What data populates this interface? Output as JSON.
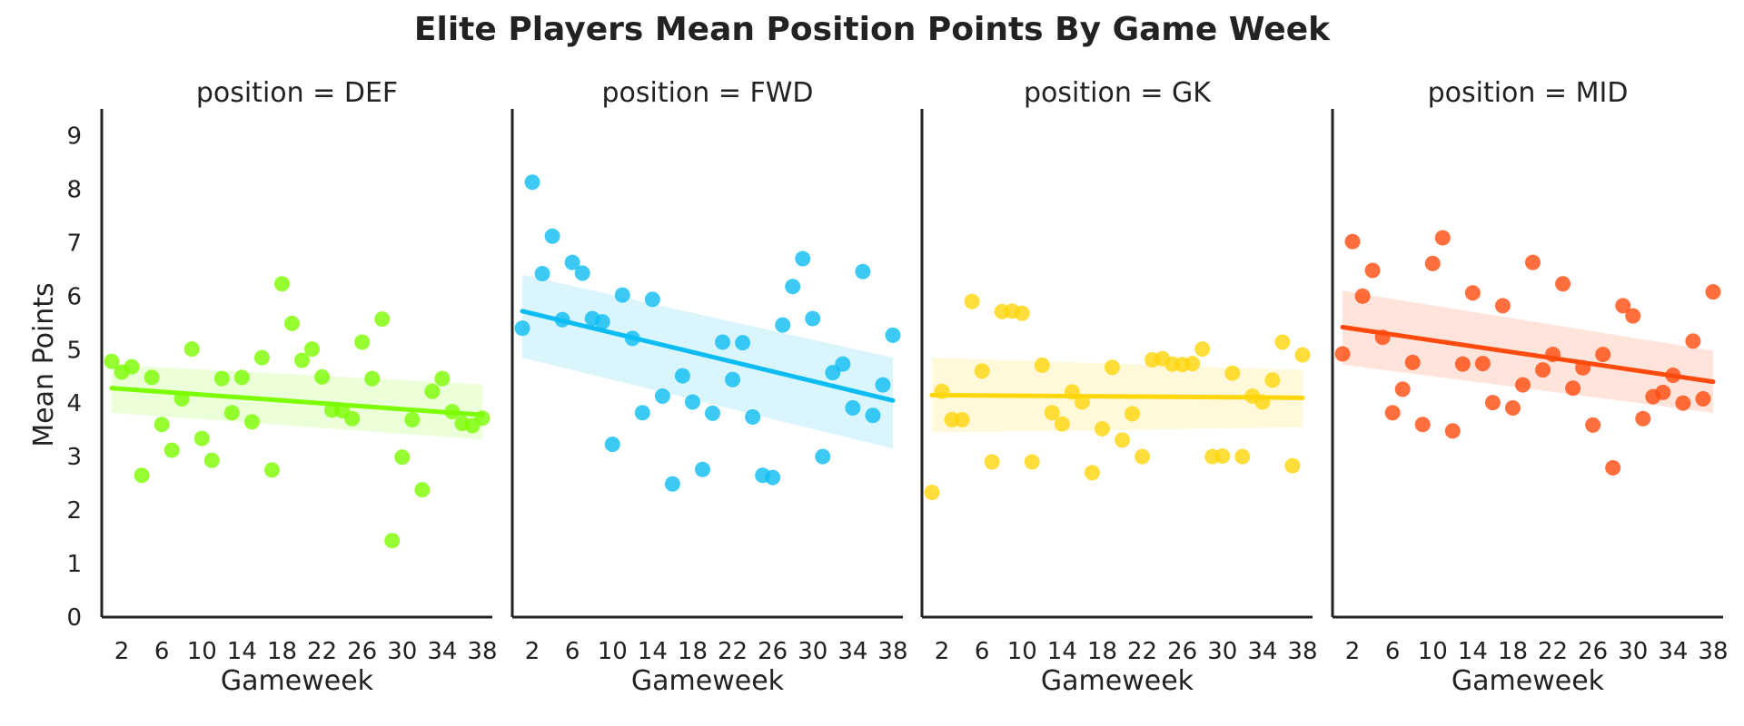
{
  "chart_data": {
    "type": "scatter",
    "title": "Elite Players Mean Position Points By Game Week",
    "xlabel": "Gameweek",
    "ylabel": "Mean Points",
    "ylim": [
      0,
      9.5
    ],
    "xlim": [
      0,
      39
    ],
    "x_ticks": [
      2,
      6,
      10,
      14,
      18,
      22,
      26,
      30,
      34,
      38
    ],
    "y_ticks": [
      0,
      1,
      2,
      3,
      4,
      5,
      6,
      7,
      8,
      9
    ],
    "grid": false,
    "facets": [
      {
        "title": "position = DEF",
        "color": "#7CFC00",
        "trend": {
          "start": [
            1,
            4.28
          ],
          "end": [
            38,
            3.78
          ]
        },
        "band": {
          "start": [
            3.82,
            4.72
          ],
          "end": [
            3.32,
            4.35
          ]
        },
        "x": [
          1,
          2,
          3,
          4,
          5,
          6,
          7,
          8,
          9,
          10,
          11,
          12,
          13,
          14,
          15,
          16,
          17,
          18,
          19,
          20,
          21,
          22,
          23,
          24,
          25,
          26,
          27,
          28,
          29,
          30,
          31,
          32,
          33,
          34,
          35,
          36,
          37,
          38
        ],
        "y": [
          4.78,
          4.58,
          4.68,
          2.65,
          4.48,
          3.6,
          3.12,
          4.08,
          5.01,
          3.34,
          2.93,
          4.46,
          3.82,
          4.48,
          3.65,
          4.85,
          2.75,
          6.23,
          5.49,
          4.8,
          5.01,
          4.49,
          3.87,
          3.86,
          3.71,
          5.14,
          4.46,
          5.57,
          1.43,
          2.99,
          3.69,
          2.38,
          4.22,
          4.46,
          3.84,
          3.62,
          3.58,
          3.72
        ]
      },
      {
        "title": "position = FWD",
        "color": "#0BBDF3",
        "trend": {
          "start": [
            1,
            5.72
          ],
          "end": [
            38,
            4.05
          ]
        },
        "band": {
          "start": [
            4.85,
            6.4
          ],
          "end": [
            3.15,
            4.85
          ]
        },
        "x": [
          1,
          2,
          3,
          4,
          5,
          6,
          7,
          8,
          9,
          10,
          11,
          12,
          13,
          14,
          15,
          16,
          17,
          18,
          19,
          20,
          21,
          22,
          23,
          24,
          25,
          26,
          27,
          28,
          29,
          30,
          31,
          32,
          33,
          34,
          35,
          36,
          37,
          38
        ],
        "y": [
          5.4,
          8.13,
          6.42,
          7.12,
          5.56,
          6.63,
          6.43,
          5.58,
          5.52,
          3.23,
          6.02,
          5.21,
          3.82,
          5.94,
          4.13,
          2.49,
          4.51,
          4.02,
          2.76,
          3.81,
          5.14,
          4.44,
          5.13,
          3.74,
          2.65,
          2.61,
          5.46,
          6.18,
          6.7,
          5.58,
          3.0,
          4.57,
          4.73,
          3.91,
          6.46,
          3.77,
          4.34,
          5.27
        ]
      },
      {
        "title": "position = GK",
        "color": "#FFD60A",
        "trend": {
          "start": [
            1,
            4.15
          ],
          "end": [
            38,
            4.1
          ]
        },
        "band": {
          "start": [
            3.45,
            4.85
          ],
          "end": [
            3.55,
            4.62
          ]
        },
        "x": [
          1,
          2,
          3,
          4,
          5,
          6,
          7,
          8,
          9,
          10,
          11,
          12,
          13,
          14,
          15,
          16,
          17,
          18,
          19,
          20,
          21,
          22,
          23,
          24,
          25,
          26,
          27,
          28,
          29,
          30,
          31,
          32,
          33,
          34,
          35,
          36,
          37,
          38
        ],
        "y": [
          2.33,
          4.22,
          3.69,
          3.69,
          5.9,
          4.6,
          2.9,
          5.71,
          5.72,
          5.68,
          2.9,
          4.71,
          3.82,
          3.61,
          4.21,
          4.02,
          2.7,
          3.52,
          4.67,
          3.31,
          3.8,
          3.0,
          4.81,
          4.83,
          4.73,
          4.72,
          4.74,
          5.01,
          3.0,
          3.01,
          4.56,
          3.0,
          4.13,
          4.02,
          4.43,
          5.14,
          2.83,
          4.9
        ]
      },
      {
        "title": "position = MID",
        "color": "#FF4A0D",
        "trend": {
          "start": [
            1,
            5.42
          ],
          "end": [
            38,
            4.4
          ]
        },
        "band": {
          "start": [
            4.72,
            6.1
          ],
          "end": [
            3.82,
            4.98
          ]
        },
        "x": [
          1,
          2,
          3,
          4,
          5,
          6,
          7,
          8,
          9,
          10,
          11,
          12,
          13,
          14,
          15,
          16,
          17,
          18,
          19,
          20,
          21,
          22,
          23,
          24,
          25,
          26,
          27,
          28,
          29,
          30,
          31,
          32,
          33,
          34,
          35,
          36,
          37,
          38
        ],
        "y": [
          4.92,
          7.02,
          6.0,
          6.48,
          5.23,
          3.82,
          4.26,
          4.76,
          3.6,
          6.61,
          7.09,
          3.48,
          4.73,
          6.06,
          4.74,
          4.01,
          5.82,
          3.91,
          4.34,
          6.63,
          4.62,
          4.91,
          6.23,
          4.28,
          4.66,
          3.59,
          4.91,
          2.79,
          5.82,
          5.63,
          3.71,
          4.12,
          4.2,
          4.52,
          4.0,
          5.16,
          4.08,
          6.08
        ]
      }
    ]
  }
}
